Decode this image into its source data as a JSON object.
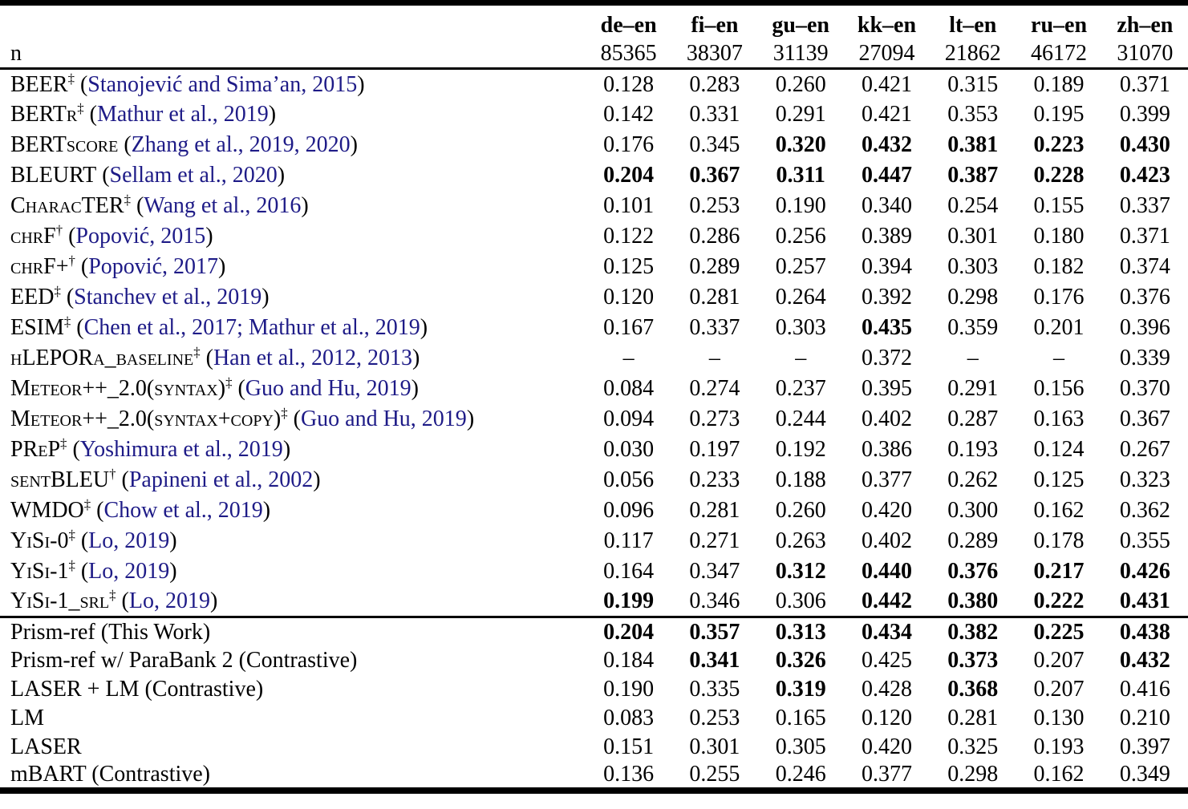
{
  "colors": {
    "citation_blue": "#1e1b87",
    "text": "#000000",
    "background": "#ffffff"
  },
  "symbols": {
    "open_paren": "(",
    "close_paren": ")",
    "dagger": "†",
    "double_dagger": "‡",
    "missing_value": "–"
  },
  "table": {
    "row_label_header": "n",
    "columns": [
      {
        "pair": "de–en",
        "n": "85365"
      },
      {
        "pair": "fi–en",
        "n": "38307"
      },
      {
        "pair": "gu–en",
        "n": "31139"
      },
      {
        "pair": "kk–en",
        "n": "27094"
      },
      {
        "pair": "lt–en",
        "n": "21862"
      },
      {
        "pair": "ru–en",
        "n": "46172"
      },
      {
        "pair": "zh–en",
        "n": "31070"
      }
    ],
    "sections": [
      {
        "rows": [
          {
            "name": "BEER",
            "sc": true,
            "sup": "‡",
            "cite": "Stanojević and Sima’an, 2015",
            "values": [
              "0.128",
              "0.283",
              "0.260",
              "0.421",
              "0.315",
              "0.189",
              "0.371"
            ],
            "bold": [
              0,
              0,
              0,
              0,
              0,
              0,
              0
            ]
          },
          {
            "name": "BERTr",
            "sc": true,
            "sup": "‡",
            "cite": "Mathur et al., 2019",
            "values": [
              "0.142",
              "0.331",
              "0.291",
              "0.421",
              "0.353",
              "0.195",
              "0.399"
            ],
            "bold": [
              0,
              0,
              0,
              0,
              0,
              0,
              0
            ]
          },
          {
            "name": "BERTscore",
            "sc": true,
            "sup": "",
            "cite": "Zhang et al., 2019, 2020",
            "values": [
              "0.176",
              "0.345",
              "0.320",
              "0.432",
              "0.381",
              "0.223",
              "0.430"
            ],
            "bold": [
              0,
              0,
              1,
              1,
              1,
              1,
              1
            ]
          },
          {
            "name": "BLEURT",
            "sc": true,
            "sup": "",
            "cite": "Sellam et al., 2020",
            "values": [
              "0.204",
              "0.367",
              "0.311",
              "0.447",
              "0.387",
              "0.228",
              "0.423"
            ],
            "bold": [
              1,
              1,
              1,
              1,
              1,
              1,
              1
            ]
          },
          {
            "name": "CharacTER",
            "sc": true,
            "sup": "‡",
            "cite": "Wang et al., 2016",
            "values": [
              "0.101",
              "0.253",
              "0.190",
              "0.340",
              "0.254",
              "0.155",
              "0.337"
            ],
            "bold": [
              0,
              0,
              0,
              0,
              0,
              0,
              0
            ]
          },
          {
            "name": "chrF",
            "sc": true,
            "sup": "†",
            "cite": "Popović, 2015",
            "values": [
              "0.122",
              "0.286",
              "0.256",
              "0.389",
              "0.301",
              "0.180",
              "0.371"
            ],
            "bold": [
              0,
              0,
              0,
              0,
              0,
              0,
              0
            ]
          },
          {
            "name": "chrF+",
            "sc": true,
            "sup": "†",
            "cite": "Popović, 2017",
            "values": [
              "0.125",
              "0.289",
              "0.257",
              "0.394",
              "0.303",
              "0.182",
              "0.374"
            ],
            "bold": [
              0,
              0,
              0,
              0,
              0,
              0,
              0
            ]
          },
          {
            "name": "EED",
            "sc": true,
            "sup": "‡",
            "cite": "Stanchev et al., 2019",
            "values": [
              "0.120",
              "0.281",
              "0.264",
              "0.392",
              "0.298",
              "0.176",
              "0.376"
            ],
            "bold": [
              0,
              0,
              0,
              0,
              0,
              0,
              0
            ]
          },
          {
            "name": "ESIM",
            "sc": true,
            "sup": "‡",
            "cite": "Chen et al., 2017; Mathur et al., 2019",
            "values": [
              "0.167",
              "0.337",
              "0.303",
              "0.435",
              "0.359",
              "0.201",
              "0.396"
            ],
            "bold": [
              0,
              0,
              0,
              1,
              0,
              0,
              0
            ]
          },
          {
            "name": "hLEPORa_baseline",
            "sc": true,
            "sup": "‡",
            "cite": "Han et al., 2012, 2013",
            "values": [
              "–",
              "–",
              "–",
              "0.372",
              "–",
              "–",
              "0.339"
            ],
            "bold": [
              0,
              0,
              0,
              0,
              0,
              0,
              0
            ]
          },
          {
            "name": "Meteor++_2.0(syntax)",
            "sc": true,
            "sup": "‡",
            "cite": "Guo and Hu, 2019",
            "values": [
              "0.084",
              "0.274",
              "0.237",
              "0.395",
              "0.291",
              "0.156",
              "0.370"
            ],
            "bold": [
              0,
              0,
              0,
              0,
              0,
              0,
              0
            ]
          },
          {
            "name": "Meteor++_2.0(syntax+copy)",
            "sc": true,
            "sup": "‡",
            "cite": "Guo and Hu, 2019",
            "values": [
              "0.094",
              "0.273",
              "0.244",
              "0.402",
              "0.287",
              "0.163",
              "0.367"
            ],
            "bold": [
              0,
              0,
              0,
              0,
              0,
              0,
              0
            ]
          },
          {
            "name": "PReP",
            "sc": true,
            "sup": "‡",
            "cite": "Yoshimura et al., 2019",
            "values": [
              "0.030",
              "0.197",
              "0.192",
              "0.386",
              "0.193",
              "0.124",
              "0.267"
            ],
            "bold": [
              0,
              0,
              0,
              0,
              0,
              0,
              0
            ]
          },
          {
            "name": "sentBLEU",
            "sc": true,
            "sup": "†",
            "cite": "Papineni et al., 2002",
            "values": [
              "0.056",
              "0.233",
              "0.188",
              "0.377",
              "0.262",
              "0.125",
              "0.323"
            ],
            "bold": [
              0,
              0,
              0,
              0,
              0,
              0,
              0
            ]
          },
          {
            "name": "WMDO",
            "sc": true,
            "sup": "‡",
            "cite": "Chow et al., 2019",
            "values": [
              "0.096",
              "0.281",
              "0.260",
              "0.420",
              "0.300",
              "0.162",
              "0.362"
            ],
            "bold": [
              0,
              0,
              0,
              0,
              0,
              0,
              0
            ]
          },
          {
            "name": "YiSi-0",
            "sc": true,
            "sup": "‡",
            "cite": "Lo, 2019",
            "values": [
              "0.117",
              "0.271",
              "0.263",
              "0.402",
              "0.289",
              "0.178",
              "0.355"
            ],
            "bold": [
              0,
              0,
              0,
              0,
              0,
              0,
              0
            ]
          },
          {
            "name": "YiSi-1",
            "sc": true,
            "sup": "‡",
            "cite": "Lo, 2019",
            "values": [
              "0.164",
              "0.347",
              "0.312",
              "0.440",
              "0.376",
              "0.217",
              "0.426"
            ],
            "bold": [
              0,
              0,
              1,
              1,
              1,
              1,
              1
            ]
          },
          {
            "name": "YiSi-1_srl",
            "sc": true,
            "sup": "‡",
            "cite": "Lo, 2019",
            "values": [
              "0.199",
              "0.346",
              "0.306",
              "0.442",
              "0.380",
              "0.222",
              "0.431"
            ],
            "bold": [
              1,
              0,
              0,
              1,
              1,
              1,
              1
            ]
          }
        ]
      },
      {
        "rows": [
          {
            "name": "Prism-ref (This Work)",
            "sc": false,
            "sup": "",
            "cite": null,
            "values": [
              "0.204",
              "0.357",
              "0.313",
              "0.434",
              "0.382",
              "0.225",
              "0.438"
            ],
            "bold": [
              1,
              1,
              1,
              1,
              1,
              1,
              1
            ]
          },
          {
            "name": "Prism-ref w/ ParaBank 2 (Contrastive)",
            "sc": false,
            "sup": "",
            "cite": null,
            "values": [
              "0.184",
              "0.341",
              "0.326",
              "0.425",
              "0.373",
              "0.207",
              "0.432"
            ],
            "bold": [
              0,
              1,
              1,
              0,
              1,
              0,
              1
            ]
          },
          {
            "name": "LASER + LM (Contrastive)",
            "sc": false,
            "sup": "",
            "cite": null,
            "values": [
              "0.190",
              "0.335",
              "0.319",
              "0.428",
              "0.368",
              "0.207",
              "0.416"
            ],
            "bold": [
              0,
              0,
              1,
              0,
              1,
              0,
              0
            ]
          },
          {
            "name": "LM",
            "sc": false,
            "sup": "",
            "cite": null,
            "values": [
              "0.083",
              "0.253",
              "0.165",
              "0.120",
              "0.281",
              "0.130",
              "0.210"
            ],
            "bold": [
              0,
              0,
              0,
              0,
              0,
              0,
              0
            ]
          },
          {
            "name": "LASER",
            "sc": false,
            "sup": "",
            "cite": null,
            "values": [
              "0.151",
              "0.301",
              "0.305",
              "0.420",
              "0.325",
              "0.193",
              "0.397"
            ],
            "bold": [
              0,
              0,
              0,
              0,
              0,
              0,
              0
            ]
          },
          {
            "name": "mBART (Contrastive)",
            "sc": false,
            "sup": "",
            "cite": null,
            "values": [
              "0.136",
              "0.255",
              "0.246",
              "0.377",
              "0.298",
              "0.162",
              "0.349"
            ],
            "bold": [
              0,
              0,
              0,
              0,
              0,
              0,
              0
            ]
          }
        ]
      }
    ]
  }
}
